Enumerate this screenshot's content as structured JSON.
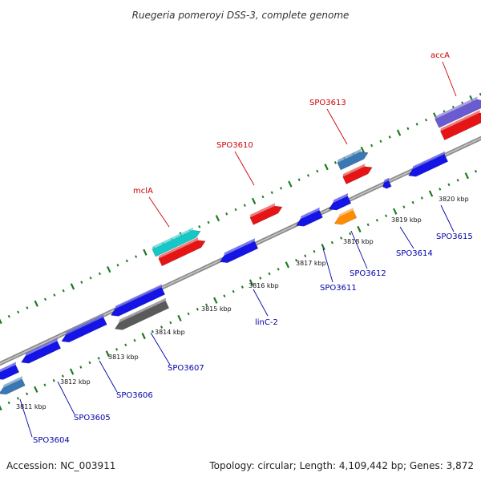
{
  "title": "Ruegeria pomeroyi DSS-3, complete genome",
  "footer": {
    "accession": "Accession: NC_003911",
    "summary": "Topology: circular; Length: 4,109,442 bp; Genes: 3,872"
  },
  "colors": {
    "backbone": "#8c8c8c",
    "ticks": "#1e7a1e",
    "forward_label": "#cc0000",
    "reverse_label": "#0000aa",
    "cds_blue": "#1414e6",
    "rrna_red": "#e61414",
    "trna_cyan": "#14c8c8",
    "steel": "#3a78b4",
    "grey": "#5a5a5a",
    "orange": "#ff8c00",
    "purple": "#6b5bd0"
  },
  "scale_labels": [
    "3811 kbp",
    "3812 kbp",
    "3813 kbp",
    "3814 kbp",
    "3815 kbp",
    "3816 kbp",
    "3817 kbp",
    "3818 kbp",
    "3819 kbp",
    "3820 kbp"
  ],
  "forward_labels": [
    "mclA",
    "SPO3610",
    "SPO3613",
    "accA"
  ],
  "reverse_labels": [
    "SPO3604",
    "SPO3605",
    "SPO3606",
    "SPO3607",
    "linC-2",
    "SPO3611",
    "SPO3612",
    "SPO3614",
    "SPO3615"
  ]
}
